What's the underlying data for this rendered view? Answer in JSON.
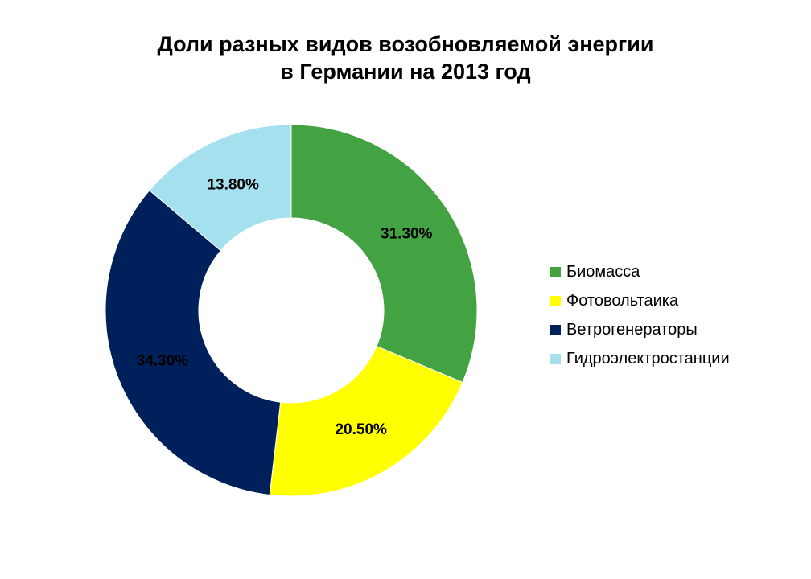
{
  "chart_data": {
    "type": "pie",
    "title_lines": [
      "Доли разных видов возобновляемой энергии",
      "в Германии на 2013 год"
    ],
    "categories": [
      "Биомасса",
      "Фотовольтаика",
      "Ветрогенераторы",
      "Гидроэлектростанции"
    ],
    "values": [
      31.3,
      20.5,
      34.3,
      13.8
    ],
    "value_labels": [
      "31.30%",
      "20.50%",
      "34.30%",
      "13.80%"
    ],
    "colors": [
      "#43a343",
      "#ffff00",
      "#00205b",
      "#a5e0ee"
    ],
    "legend_position": "right",
    "donut": true
  }
}
